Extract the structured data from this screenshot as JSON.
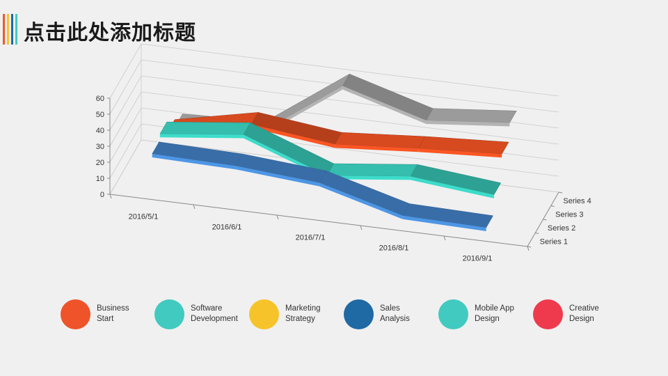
{
  "header": {
    "title": "点击此处添加标题",
    "accent_colors": [
      "#f05a28",
      "#f7c42b",
      "#1b6aa5",
      "#41cac0"
    ]
  },
  "chart_data": {
    "type": "line",
    "style": "3d-ribbon",
    "categories": [
      "2016/5/1",
      "2016/6/1",
      "2016/7/1",
      "2016/8/1",
      "2016/9/1"
    ],
    "ylim": [
      0,
      60
    ],
    "yticks": [
      0,
      10,
      20,
      30,
      40,
      50,
      60
    ],
    "grid": true,
    "series": [
      {
        "name": "Series 1",
        "color": "#3b73b0",
        "values": [
          28,
          27,
          23,
          9,
          8
        ]
      },
      {
        "name": "Series 2",
        "color": "#2fa99b",
        "values": [
          32,
          38,
          19,
          25,
          20
        ]
      },
      {
        "name": "Series 3",
        "color": "#c0421c",
        "values": [
          25,
          36,
          30,
          34,
          37
        ]
      },
      {
        "name": "Series 4",
        "color": "#8a8a8a",
        "values": [
          20,
          22,
          58,
          43,
          48
        ]
      }
    ]
  },
  "legend": {
    "items": [
      {
        "line1": "Business",
        "line2": "Start",
        "color": "#ef5329"
      },
      {
        "line1": "Software",
        "line2": "Development",
        "color": "#41cac0"
      },
      {
        "line1": "Marketing",
        "line2": "Strategy",
        "color": "#f6c42a"
      },
      {
        "line1": "Sales",
        "line2": "Analysis",
        "color": "#1f69a4"
      },
      {
        "line1": "Mobile App",
        "line2": "Design",
        "color": "#41cac0"
      },
      {
        "line1": "Creative",
        "line2": "Design",
        "color": "#ef3a4e"
      }
    ]
  }
}
